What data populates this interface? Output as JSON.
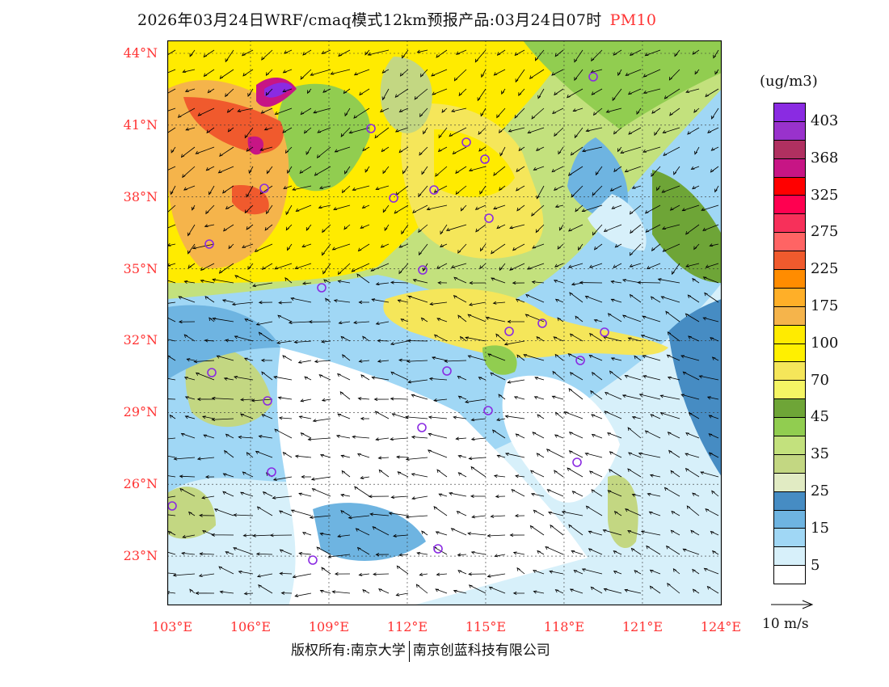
{
  "title": {
    "text": "2026年03月24日WRF/cmaq模式12km预报产品:03月24日07时",
    "species": "PM10"
  },
  "axes": {
    "lat_labels": [
      "44°N",
      "41°N",
      "38°N",
      "35°N",
      "32°N",
      "29°N",
      "26°N",
      "23°N"
    ],
    "lat_values": [
      44,
      41,
      38,
      35,
      32,
      29,
      26,
      23
    ],
    "lon_labels": [
      "103°E",
      "106°E",
      "109°E",
      "112°E",
      "115°E",
      "118°E",
      "121°E",
      "124°E"
    ],
    "lon_values": [
      103,
      106,
      109,
      112,
      115,
      118,
      121,
      124
    ]
  },
  "legend": {
    "unit": "(ug/m3)",
    "colors": [
      "#8a2be2",
      "#9932cc",
      "#b03060",
      "#c71585",
      "#ff0000",
      "#ff0050",
      "#f7305a",
      "#ff6464",
      "#f05a2d",
      "#ff8c00",
      "#ffaf28",
      "#f5b44b",
      "#ffeb00",
      "#fff000",
      "#f5e65a",
      "#f5f564",
      "#6ea537",
      "#91cd50",
      "#c3e17d",
      "#c3d782",
      "#e1ebc3",
      "#468cc3",
      "#6eb4e1",
      "#a0d7f5",
      "#d7f0fa",
      "#ffffff"
    ],
    "labels": [
      "403",
      "368",
      "325",
      "275",
      "225",
      "175",
      "100",
      "70",
      "45",
      "35",
      "25",
      "15",
      "5"
    ]
  },
  "wind_reference": {
    "label": "10 m/s"
  },
  "credit": {
    "left": "版权所有:南京大学",
    "right": "南京创蓝科技有限公司"
  }
}
